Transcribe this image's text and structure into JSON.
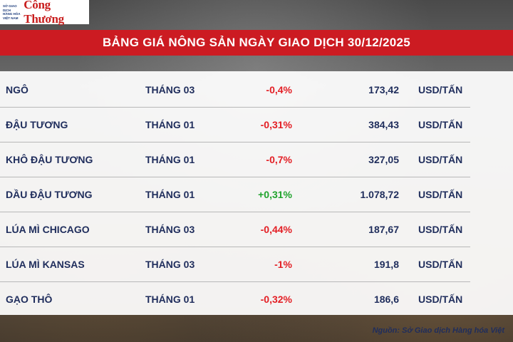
{
  "header": {
    "logo_small_lines": [
      "SỞ GIAO DỊCH",
      "HÀNG HÓA",
      "VIỆT NAM"
    ],
    "logo_brand": "Công Thương",
    "title": "BẢNG GIÁ NÔNG SẢN NGÀY GIAO DỊCH 30/12/2025"
  },
  "colors": {
    "title_bg": "#cc1b22",
    "text_navy": "#1f2d5c",
    "negative": "#e31e24",
    "positive": "#1fa32c",
    "brand_red": "#c81d1d"
  },
  "rows": [
    {
      "name": "NGÔ",
      "month": "THÁNG 03",
      "change": "-0,4%",
      "direction": "down",
      "price": "173,42",
      "unit": "USD/TẤN"
    },
    {
      "name": "ĐẬU TƯƠNG",
      "month": "THÁNG 01",
      "change": "-0,31%",
      "direction": "down",
      "price": "384,43",
      "unit": "USD/TẤN"
    },
    {
      "name": "KHÔ ĐẬU TƯƠNG",
      "month": "THÁNG 01",
      "change": "-0,7%",
      "direction": "down",
      "price": "327,05",
      "unit": "USD/TẤN"
    },
    {
      "name": "DẦU ĐẬU TƯƠNG",
      "month": "THÁNG 01",
      "change": "+0,31%",
      "direction": "up",
      "price": "1.078,72",
      "unit": "USD/TẤN"
    },
    {
      "name": "LÚA MÌ CHICAGO",
      "month": "THÁNG 03",
      "change": "-0,44%",
      "direction": "down",
      "price": "187,67",
      "unit": "USD/TẤN"
    },
    {
      "name": "LÚA MÌ KANSAS",
      "month": "THÁNG 03",
      "change": "-1%",
      "direction": "down",
      "price": "191,8",
      "unit": "USD/TẤN"
    },
    {
      "name": "GẠO THÔ",
      "month": "THÁNG 01",
      "change": "-0,32%",
      "direction": "down",
      "price": "186,6",
      "unit": "USD/TẤN"
    }
  ],
  "footer": {
    "source": "Nguồn: Sở Giao dịch Hàng hóa Việt"
  }
}
